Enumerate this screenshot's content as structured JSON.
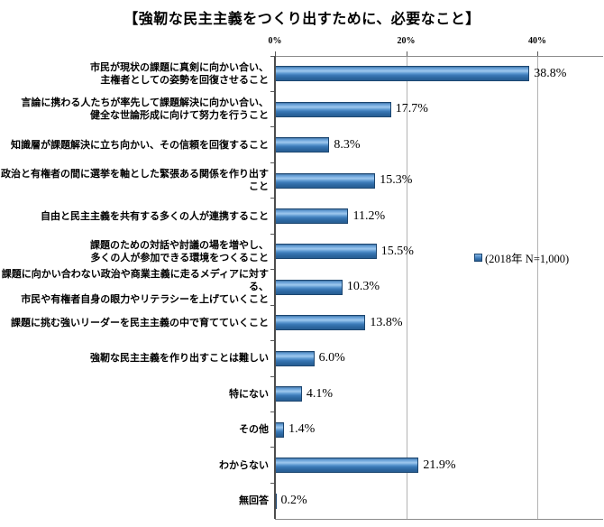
{
  "title": "【強靭な民主主義をつくり出すために、必要なこと】",
  "chart_data": {
    "type": "bar",
    "orientation": "horizontal",
    "title": "【強靭な民主主義をつくり出すために、必要なこと】",
    "categories": [
      "市民が現状の課題に真剣に向かい合い、\n主権者としての姿勢を回復させること",
      "言論に携わる人たちが率先して課題解決に向かい合い、\n健全な世論形成に向けて努力を行うこと",
      "知識層が課題解決に立ち向かい、その信頼を回復すること",
      "政治と有権者の間に選挙を軸とした緊張ある関係を作り出すこと",
      "自由と民主主義を共有する多くの人が連携すること",
      "課題のための対話や討議の場を増やし、\n多くの人が参加できる環境をつくること",
      "課題に向かい合わない政治や商業主義に走るメディアに対する、\n市民や有権者自身の眼力やリテラシーを上げていくこと",
      "課題に挑む強いリーダーを民主主義の中で育てていくこと",
      "強靭な民主主義を作り出すことは難しい",
      "特にない",
      "その他",
      "わからない",
      "無回答"
    ],
    "values": [
      38.8,
      17.7,
      8.3,
      15.3,
      11.2,
      15.5,
      10.3,
      13.8,
      6.0,
      4.1,
      1.4,
      21.9,
      0.2
    ],
    "value_labels": [
      "38.8%",
      "17.7%",
      "8.3%",
      "15.3%",
      "11.2%",
      "15.5%",
      "10.3%",
      "13.8%",
      "6.0%",
      "4.1%",
      "1.4%",
      "21.9%",
      "0.2%"
    ],
    "xlim": [
      0,
      50
    ],
    "xticks": [
      0,
      20,
      40
    ],
    "xtick_labels": [
      "0%",
      "20%",
      "40%"
    ],
    "grid": true,
    "legend": "(2018年 N=1,000)",
    "legend_position": "right-middle",
    "bar_color": "#3c7ab8",
    "bar_border_color": "#1c4670",
    "gridline_color": "#b3b3b3"
  }
}
